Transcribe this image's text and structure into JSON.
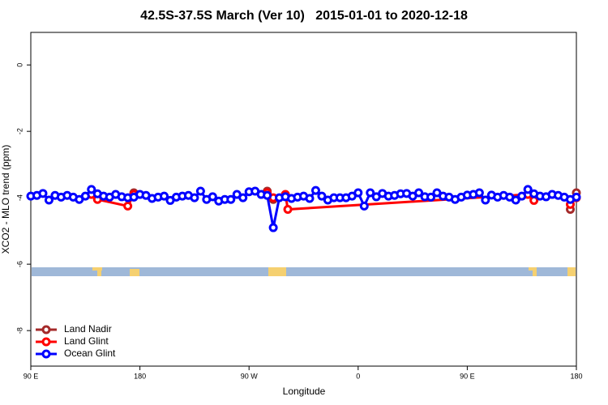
{
  "chart_data": {
    "type": "line",
    "title": "42.5S-37.5S March (Ver 10)   2015-01-01 to 2020-12-18",
    "x_label": "Longitude",
    "y_label": "XCO2 - MLO trend (ppm)",
    "xlim": [
      90,
      540
    ],
    "ylim": [
      -9.07,
      0.98
    ],
    "xticks": [
      {
        "value": 90,
        "label": "90 E"
      },
      180,
      {
        "value": 270,
        "label": "90 W"
      },
      {
        "value": 360,
        "label": "0"
      },
      {
        "value": 450,
        "label": "90 E"
      },
      {
        "value": 540,
        "label": "180"
      }
    ],
    "yticks": [
      0,
      -2,
      -4,
      -6,
      -8
    ],
    "legend": "bottom-left",
    "series": [
      {
        "name": "Land Nadir",
        "color": "#a52a2a",
        "x": [
          175,
          180,
          285,
          290,
          530,
          535,
          540
        ],
        "values": [
          -3.85,
          null,
          -3.8,
          -4.05,
          null,
          -4.35,
          -3.85
        ]
      },
      {
        "name": "Land Glint",
        "color": "#ff0000",
        "x": [
          140,
          145,
          170,
          175,
          180,
          285,
          290,
          300,
          302,
          500,
          505,
          530,
          535,
          540
        ],
        "values": [
          -3.9,
          -4.05,
          -4.25,
          -3.9,
          null,
          -3.85,
          -4.0,
          -3.9,
          -4.35,
          -3.9,
          -4.08,
          null,
          -4.2,
          -4.0
        ]
      },
      {
        "name": "Ocean Glint",
        "color": "#0000ff",
        "x": [
          90,
          95,
          100,
          105,
          110,
          115,
          120,
          125,
          130,
          135,
          140,
          145,
          150,
          155,
          160,
          165,
          170,
          175,
          180,
          185,
          190,
          195,
          200,
          205,
          210,
          215,
          220,
          225,
          230,
          235,
          240,
          245,
          250,
          255,
          260,
          265,
          270,
          275,
          280,
          285,
          290,
          295,
          300,
          305,
          310,
          315,
          320,
          325,
          330,
          335,
          340,
          345,
          350,
          355,
          360,
          365,
          370,
          375,
          380,
          385,
          390,
          395,
          400,
          405,
          410,
          415,
          420,
          425,
          430,
          435,
          440,
          445,
          450,
          455,
          460,
          465,
          470,
          475,
          480,
          485,
          490,
          495,
          500,
          505,
          510,
          515,
          520,
          525,
          530,
          535,
          540
        ],
        "values": [
          -3.95,
          -3.93,
          -3.87,
          -4.07,
          -3.93,
          -3.98,
          -3.93,
          -3.98,
          -4.05,
          -3.95,
          -3.75,
          -3.88,
          -3.95,
          -3.98,
          -3.9,
          -3.97,
          -4.0,
          -3.98,
          -3.9,
          -3.93,
          -4.02,
          -3.98,
          -3.95,
          -4.08,
          -3.98,
          -3.95,
          -3.93,
          -4.0,
          -3.8,
          -4.05,
          -3.97,
          -4.1,
          -4.05,
          -4.05,
          -3.9,
          -4.0,
          -3.82,
          -3.8,
          -3.9,
          -3.93,
          -4.9,
          -4.0,
          -3.97,
          -4.02,
          -3.98,
          -3.95,
          -4.02,
          -3.78,
          -3.95,
          -4.07,
          -4.0,
          -4.0,
          -4.0,
          -3.95,
          -3.85,
          -4.25,
          -3.85,
          -3.97,
          -3.87,
          -3.95,
          -3.93,
          -3.88,
          -3.87,
          -3.95,
          -3.85,
          -3.97,
          -3.98,
          -3.85,
          -3.95,
          -3.98,
          -4.05,
          -3.98,
          -3.92,
          -3.9,
          -3.85,
          -4.07,
          -3.92,
          -3.98,
          -3.93,
          -3.98,
          -4.07,
          -3.95,
          -3.75,
          -3.88,
          -3.95,
          -3.97,
          -3.9,
          -3.93,
          -3.98,
          -4.05,
          -3.98
        ]
      }
    ]
  }
}
